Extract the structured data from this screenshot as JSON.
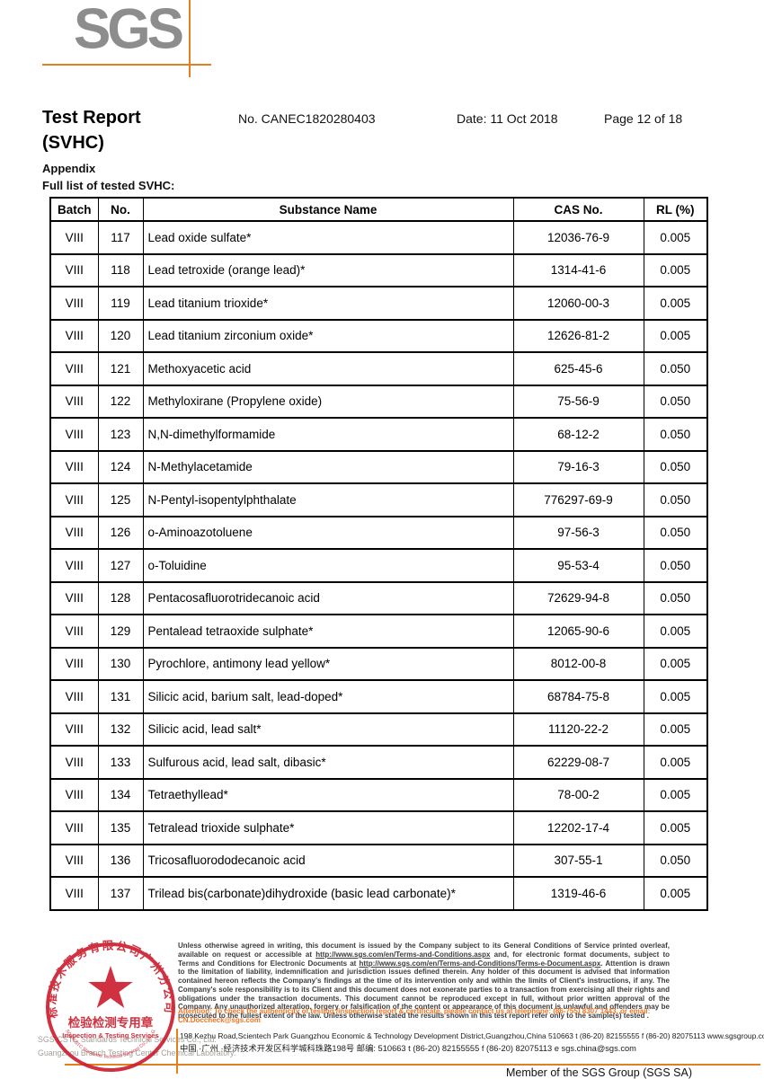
{
  "logo": {
    "text": "SGS"
  },
  "header": {
    "title": "Test Report",
    "subtitle": "(SVHC)",
    "report_no": "No. CANEC1820280403",
    "date": "Date: 11 Oct 2018",
    "page_info": "Page 12 of 18",
    "appendix": "Appendix",
    "full_list": "Full list of tested SVHC:"
  },
  "table": {
    "columns": [
      "Batch",
      "No.",
      "Substance Name",
      "CAS No.",
      "RL (%)"
    ],
    "rows": [
      {
        "batch": "VIII",
        "no": "117",
        "name": "Lead oxide sulfate*",
        "cas": "12036-76-9",
        "rl": "0.005"
      },
      {
        "batch": "VIII",
        "no": "118",
        "name": "Lead tetroxide (orange lead)*",
        "cas": "1314-41-6",
        "rl": "0.005"
      },
      {
        "batch": "VIII",
        "no": "119",
        "name": "Lead titanium trioxide*",
        "cas": "12060-00-3",
        "rl": "0.005"
      },
      {
        "batch": "VIII",
        "no": "120",
        "name": "Lead titanium zirconium oxide*",
        "cas": "12626-81-2",
        "rl": "0.005"
      },
      {
        "batch": "VIII",
        "no": "121",
        "name": "Methoxyacetic acid",
        "cas": "625-45-6",
        "rl": "0.050"
      },
      {
        "batch": "VIII",
        "no": "122",
        "name": "Methyloxirane (Propylene oxide)",
        "cas": "75-56-9",
        "rl": "0.050"
      },
      {
        "batch": "VIII",
        "no": "123",
        "name": "N,N-dimethylformamide",
        "cas": "68-12-2",
        "rl": "0.050"
      },
      {
        "batch": "VIII",
        "no": "124",
        "name": "N-Methylacetamide",
        "cas": "79-16-3",
        "rl": "0.050"
      },
      {
        "batch": "VIII",
        "no": "125",
        "name": "N-Pentyl-isopentylphthalate",
        "cas": "776297-69-9",
        "rl": "0.050"
      },
      {
        "batch": "VIII",
        "no": "126",
        "name": "o-Aminoazotoluene",
        "cas": "97-56-3",
        "rl": "0.050"
      },
      {
        "batch": "VIII",
        "no": "127",
        "name": "o-Toluidine",
        "cas": "95-53-4",
        "rl": "0.050"
      },
      {
        "batch": "VIII",
        "no": "128",
        "name": "Pentacosafluorotridecanoic acid",
        "cas": "72629-94-8",
        "rl": "0.050"
      },
      {
        "batch": "VIII",
        "no": "129",
        "name": "Pentalead tetraoxide sulphate*",
        "cas": "12065-90-6",
        "rl": "0.005"
      },
      {
        "batch": "VIII",
        "no": "130",
        "name": "Pyrochlore, antimony lead yellow*",
        "cas": "8012-00-8",
        "rl": "0.005"
      },
      {
        "batch": "VIII",
        "no": "131",
        "name": "Silicic acid, barium salt, lead-doped*",
        "cas": "68784-75-8",
        "rl": "0.005"
      },
      {
        "batch": "VIII",
        "no": "132",
        "name": "Silicic acid, lead salt*",
        "cas": "11120-22-2",
        "rl": "0.005"
      },
      {
        "batch": "VIII",
        "no": "133",
        "name": "Sulfurous acid, lead salt, dibasic*",
        "cas": "62229-08-7",
        "rl": "0.005"
      },
      {
        "batch": "VIII",
        "no": "134",
        "name": "Tetraethyllead*",
        "cas": "78-00-2",
        "rl": "0.005"
      },
      {
        "batch": "VIII",
        "no": "135",
        "name": "Tetralead trioxide sulphate*",
        "cas": "12202-17-4",
        "rl": "0.005"
      },
      {
        "batch": "VIII",
        "no": "136",
        "name": "Tricosafluorododecanoic acid",
        "cas": "307-55-1",
        "rl": "0.050"
      },
      {
        "batch": "VIII",
        "no": "137",
        "name": "Trilead bis(carbonate)dihydroxide (basic lead carbonate)*",
        "cas": "1319-46-6",
        "rl": "0.005"
      }
    ]
  },
  "stamp": {
    "arc_text_cn": "标准技术服务有限公司广州分公司",
    "arc_text_en": "SGS-CSTC Standards Technical Services Co., Ltd. Guangzhou Branch",
    "center_line1": "检验检测专用章",
    "center_line2": "Inspection & Testing Services"
  },
  "footer": {
    "company_line1": "SGS-CSTC Standards Technical Services Co., Ltd.",
    "company_line2": "Guangzhou Branch Testing Center Chemical Laboratory.",
    "disclaimer_p1": "Unless otherwise agreed in writing, this document is issued by the Company subject to its General Conditions of Service printed overleaf, available on request or accessible at ",
    "disclaimer_url1": "http://www.sgs.com/en/Terms-and-Conditions.aspx",
    "disclaimer_p2": " and, for electronic format documents, subject to Terms and Conditions for Electronic Documents at ",
    "disclaimer_url2": "http://www.sgs.com/en/Terms-and-Conditions/Terms-e-Document.aspx",
    "disclaimer_p3": ". Attention is drawn to the limitation of liability, indemnification and jurisdiction issues defined therein. Any holder of this document is advised that information contained hereon reflects the Company's findings at the time of its intervention only and within the limits of Client's instructions, if any. The Company's sole responsibility is to its Client and this document does not exonerate parties to a transaction from exercising all their rights and obligations under the transaction documents. This document cannot be reproduced except in full, without prior written approval of the Company. Any unauthorized alteration, forgery or falsification of the content or appearance of this document is unlawful and offenders may be prosecuted to the fullest extent of the law. Unless otherwise stated the results shown in this test report refer only to the sample(s) tested .",
    "attention": "Attention: To check the authenticity of testing /inspection report & certificate, please contact us at telephone: (86-755) 8307 1443, or email: CN.Doccheck@sgs.com",
    "address_en": "198 Kezhu Road,Scientech Park Guangzhou Economic & Technology Development District,Guangzhou,China  510663   t (86-20) 82155555   f (86-20) 82075113    www.sgsgroup.com.cn",
    "address_cn": "中国 ·广州 ·经济技术开发区科学城科珠路198号         邮编: 510663   t (86-20) 82155555   f (86-20) 82075113   e  sgs.china@sgs.com",
    "member": "Member of the SGS Group (SGS SA)"
  },
  "colors": {
    "orange_line": "#e0801f",
    "attention_orange": "#ed7524",
    "stamp_red": "#cc2030",
    "logo_gray": "#8d8d8d"
  }
}
